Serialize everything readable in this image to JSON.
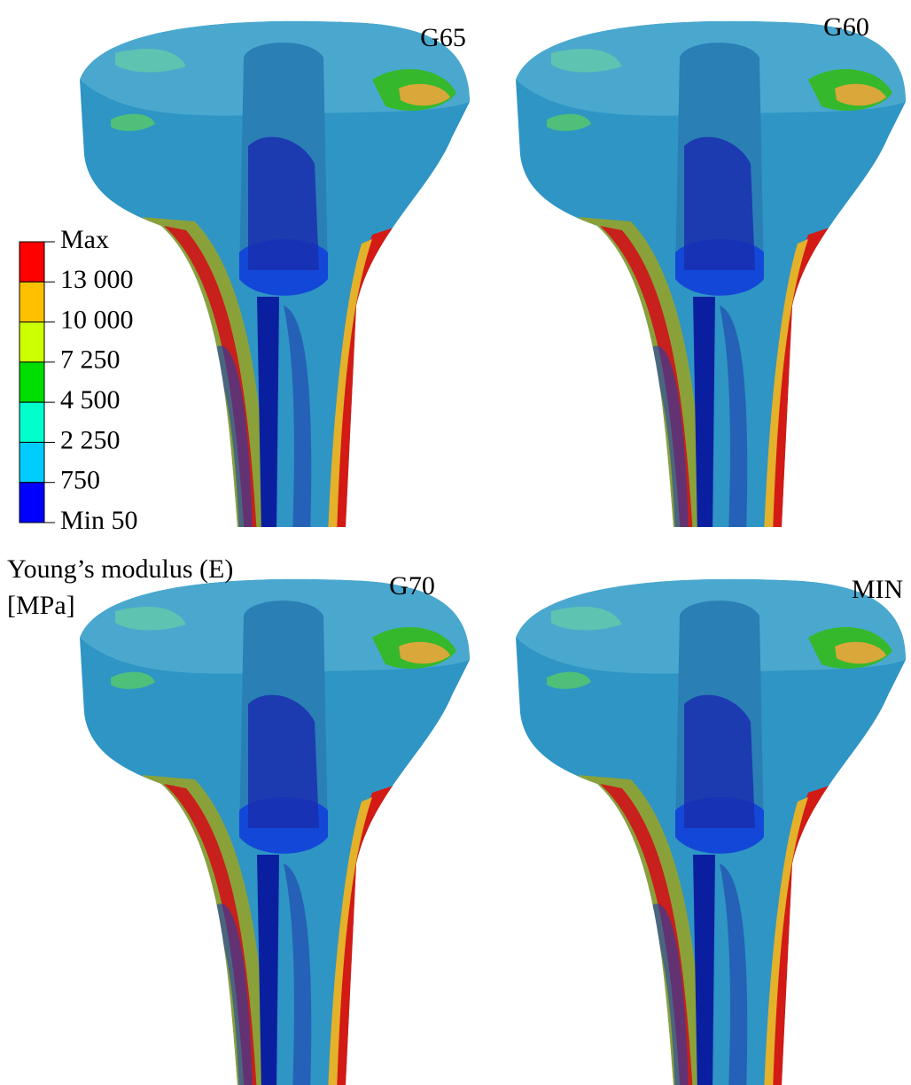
{
  "panels": [
    {
      "label": "G65"
    },
    {
      "label": "G60"
    },
    {
      "label": "G70"
    },
    {
      "label": "MIN"
    }
  ],
  "legend": {
    "title": "Young’s modulus (E)",
    "unit": "[MPa]",
    "labels": [
      "Max",
      "13 000",
      "10 000",
      "7 250",
      "4 500",
      "2 250",
      "750",
      "Min 50"
    ],
    "colors": [
      "#ff0000",
      "#ffc000",
      "#ccff00",
      "#00dd00",
      "#00ffcc",
      "#00ccff",
      "#0000ff"
    ]
  }
}
